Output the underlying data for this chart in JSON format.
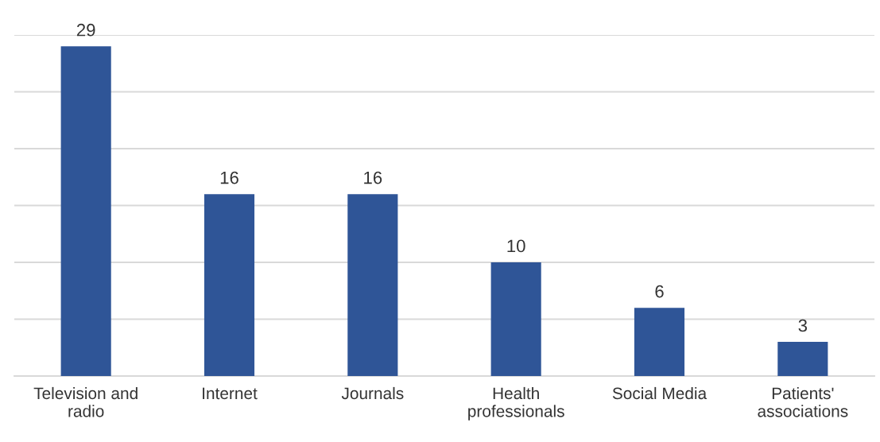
{
  "chart_data": {
    "type": "bar",
    "categories": [
      "Television and\nradio",
      "Internet",
      "Journals",
      "Health\nprofessionals",
      "Social Media",
      "Patients'\nassociations"
    ],
    "values": [
      29,
      16,
      16,
      10,
      6,
      3
    ],
    "color": "#2f5597",
    "data_labels": true,
    "yticks": [
      {
        "value": 0,
        "label": null
      },
      {
        "value": 5,
        "label": null
      },
      {
        "value": 10,
        "label": null
      },
      {
        "value": 15,
        "label": null
      },
      {
        "value": 20,
        "label": null
      },
      {
        "value": 25,
        "label": null
      },
      {
        "value": 30,
        "label": null
      }
    ],
    "grid": "y",
    "tick_labels": "x",
    "legend": false
  }
}
